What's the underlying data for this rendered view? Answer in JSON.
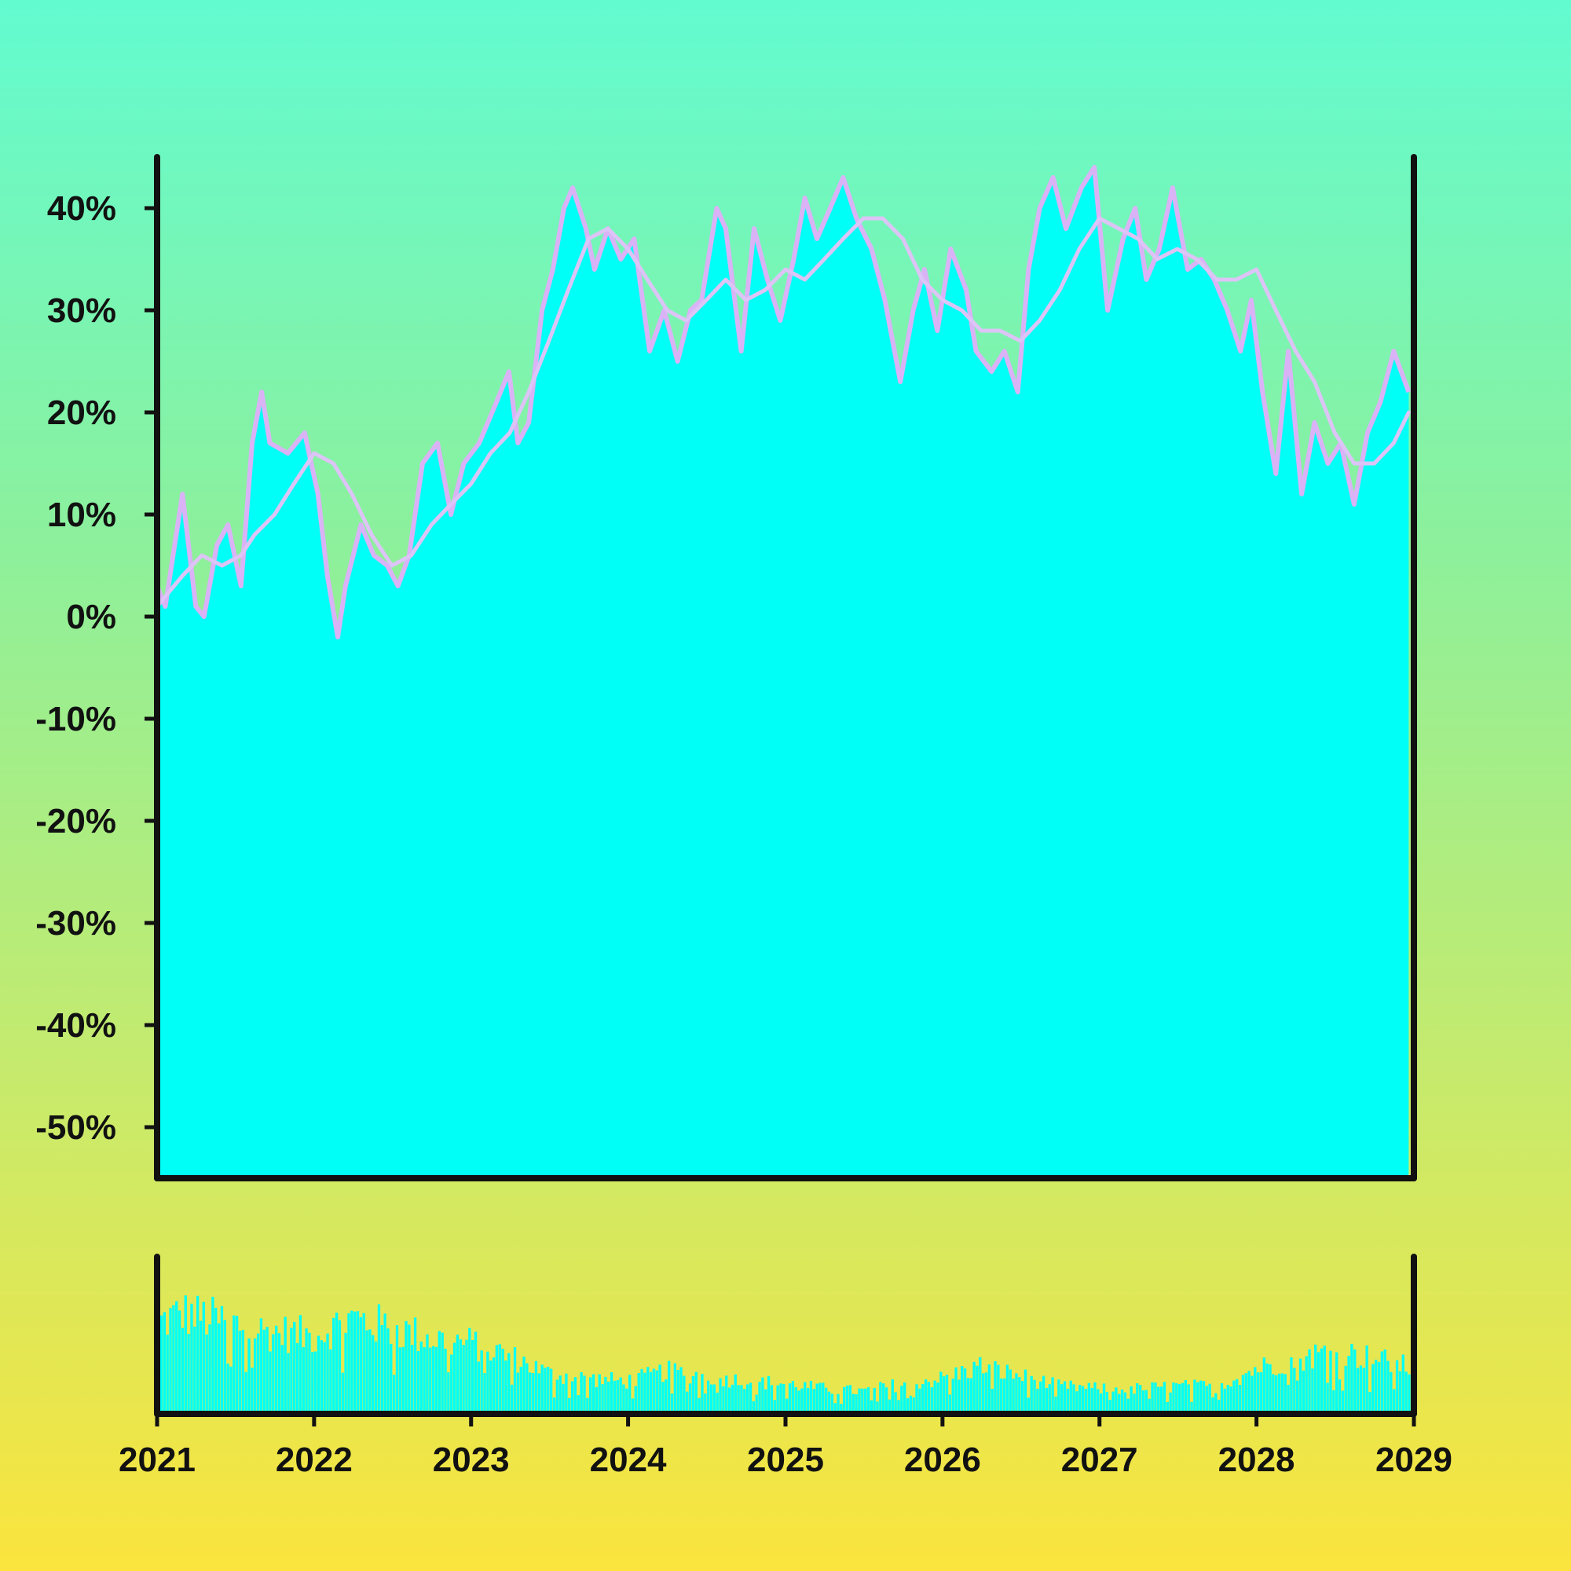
{
  "colors": {
    "area_fill": "#00fff6",
    "price_line": "#d9b3f6",
    "ma_line": "#dcc4f6",
    "axis": "#111111",
    "volume_fill": "#00fff6"
  },
  "chart_data": [
    {
      "type": "area",
      "title": "",
      "xlabel": "",
      "ylabel": "",
      "grid": false,
      "legend": "none",
      "ylim": [
        -55,
        45
      ],
      "xlim": [
        "2021-01-01",
        "2029-01-01"
      ],
      "y_ticks": [
        {
          "value": 40,
          "label": "40%"
        },
        {
          "value": 30,
          "label": "30%"
        },
        {
          "value": 20,
          "label": "20%"
        },
        {
          "value": 10,
          "label": "10%"
        },
        {
          "value": 0,
          "label": "0%"
        },
        {
          "value": -10,
          "label": "-10%"
        },
        {
          "value": -20,
          "label": "-20%"
        },
        {
          "value": -30,
          "label": "-30%"
        },
        {
          "value": -40,
          "label": "-40%"
        },
        {
          "value": -50,
          "label": "-50%"
        }
      ],
      "x_ticks": [
        {
          "value": "2021-01-01",
          "label": "2021"
        },
        {
          "value": "2022-01-01",
          "label": "2022"
        },
        {
          "value": "2023-01-01",
          "label": "2023"
        },
        {
          "value": "2024-01-01",
          "label": "2024"
        },
        {
          "value": "2025-01-01",
          "label": "2025"
        },
        {
          "value": "2026-01-01",
          "label": "2026"
        },
        {
          "value": "2027-01-01",
          "label": "2027"
        },
        {
          "value": "2028-01-01",
          "label": "2028"
        },
        {
          "value": "2029-01-01",
          "label": "2029"
        }
      ],
      "series": [
        {
          "x": [
            "2021-01-01",
            "2021-01-20",
            "2021-03-01",
            "2021-04-01",
            "2021-04-20",
            "2021-05-20",
            "2021-06-15",
            "2021-07-15",
            "2021-08-10",
            "2021-09-01",
            "2021-09-20",
            "2021-11-01",
            "2021-12-10",
            "2022-01-10",
            "2022-02-01",
            "2022-02-25",
            "2022-03-15",
            "2022-04-20",
            "2022-05-20",
            "2022-06-20",
            "2022-07-15",
            "2022-08-10",
            "2022-09-10",
            "2022-10-15",
            "2022-11-15",
            "2022-12-15",
            "2023-01-20",
            "2023-03-01",
            "2023-03-30",
            "2023-04-20",
            "2023-05-15",
            "2023-06-15",
            "2023-07-10",
            "2023-08-05",
            "2023-08-25",
            "2023-09-25",
            "2023-10-15",
            "2023-11-15",
            "2023-12-15",
            "2024-01-15",
            "2024-02-20",
            "2024-03-25",
            "2024-04-25",
            "2024-05-25",
            "2024-06-20",
            "2024-07-25",
            "2024-08-15",
            "2024-09-20",
            "2024-10-20",
            "2024-11-20",
            "2024-12-20",
            "2025-01-20",
            "2025-02-15",
            "2025-03-15",
            "2025-04-15",
            "2025-05-15",
            "2025-06-15",
            "2025-07-20",
            "2025-08-20",
            "2025-09-25",
            "2025-10-25",
            "2025-11-20",
            "2025-12-20",
            "2026-01-20",
            "2026-02-25",
            "2026-03-20",
            "2026-04-25",
            "2026-05-25",
            "2026-06-25",
            "2026-07-20",
            "2026-08-15",
            "2026-09-15",
            "2026-10-15",
            "2026-11-20",
            "2026-12-20",
            "2027-01-20",
            "2027-02-25",
            "2027-03-25",
            "2027-04-20",
            "2027-05-20",
            "2027-06-20",
            "2027-07-25",
            "2027-08-25",
            "2027-09-25",
            "2027-10-25",
            "2027-11-25",
            "2027-12-20",
            "2028-01-15",
            "2028-02-15",
            "2028-03-15",
            "2028-04-15",
            "2028-05-15",
            "2028-06-15",
            "2028-07-15",
            "2028-08-15",
            "2028-09-15",
            "2028-10-15",
            "2028-11-15",
            "2028-12-20"
          ],
          "y": [
            3,
            1,
            12,
            1,
            0,
            7,
            9,
            3,
            17,
            22,
            17,
            16,
            18,
            12,
            4,
            -2,
            3,
            9,
            6,
            5,
            3,
            6,
            15,
            17,
            10,
            15,
            17,
            21,
            24,
            17,
            19,
            30,
            34,
            40,
            42,
            38,
            34,
            38,
            35,
            37,
            26,
            30,
            25,
            30,
            31,
            40,
            38,
            26,
            38,
            33,
            29,
            35,
            41,
            37,
            40,
            43,
            39,
            36,
            31,
            23,
            30,
            34,
            28,
            36,
            32,
            26,
            24,
            26,
            22,
            34,
            40,
            43,
            38,
            42,
            44,
            30,
            37,
            40,
            33,
            36,
            42,
            34,
            35,
            33,
            30,
            26,
            31,
            22,
            14,
            26,
            12,
            19,
            15,
            17,
            11,
            18,
            21,
            26,
            22
          ]
        },
        {
          "x": [
            "2021-01-01",
            "2021-03-01",
            "2021-04-15",
            "2021-06-01",
            "2021-07-15",
            "2021-08-15",
            "2021-10-01",
            "2021-11-15",
            "2022-01-01",
            "2022-02-15",
            "2022-03-30",
            "2022-05-15",
            "2022-07-01",
            "2022-08-15",
            "2022-10-01",
            "2022-11-15",
            "2023-01-01",
            "2023-02-15",
            "2023-04-01",
            "2023-05-15",
            "2023-07-01",
            "2023-08-15",
            "2023-10-01",
            "2023-11-15",
            "2024-01-01",
            "2024-02-15",
            "2024-04-01",
            "2024-05-15",
            "2024-07-01",
            "2024-08-15",
            "2024-10-01",
            "2024-11-15",
            "2025-01-01",
            "2025-02-15",
            "2025-04-01",
            "2025-05-15",
            "2025-07-01",
            "2025-08-15",
            "2025-10-01",
            "2025-11-15",
            "2026-01-01",
            "2026-02-15",
            "2026-04-01",
            "2026-05-15",
            "2026-07-01",
            "2026-08-15",
            "2026-10-01",
            "2026-11-15",
            "2027-01-01",
            "2027-02-15",
            "2027-04-01",
            "2027-05-15",
            "2027-07-01",
            "2027-08-15",
            "2027-10-01",
            "2027-11-15",
            "2028-01-01",
            "2028-02-15",
            "2028-04-01",
            "2028-05-15",
            "2028-07-01",
            "2028-08-15",
            "2028-10-01",
            "2028-11-15",
            "2028-12-20"
          ],
          "y": [
            1,
            4,
            6,
            5,
            6,
            8,
            10,
            13,
            16,
            15,
            12,
            8,
            5,
            6,
            9,
            11,
            13,
            16,
            18,
            22,
            27,
            32,
            37,
            38,
            36,
            33,
            30,
            29,
            31,
            33,
            31,
            32,
            34,
            33,
            35,
            37,
            39,
            39,
            37,
            33,
            31,
            30,
            28,
            28,
            27,
            29,
            32,
            36,
            39,
            38,
            37,
            35,
            36,
            35,
            33,
            33,
            34,
            30,
            26,
            23,
            18,
            15,
            15,
            17,
            20
          ]
        }
      ]
    },
    {
      "type": "bar",
      "title": "",
      "xlabel": "",
      "ylabel": "",
      "grid": false,
      "legend": "none",
      "ylim": [
        0,
        100
      ],
      "xlim": [
        "2021-01-01",
        "2029-01-01"
      ],
      "x_ticks": [
        {
          "value": "2021-01-01",
          "label": "2021"
        },
        {
          "value": "2022-01-01",
          "label": "2022"
        },
        {
          "value": "2023-01-01",
          "label": "2023"
        },
        {
          "value": "2024-01-01",
          "label": "2024"
        },
        {
          "value": "2025-01-01",
          "label": "2025"
        },
        {
          "value": "2026-01-01",
          "label": "2026"
        },
        {
          "value": "2027-01-01",
          "label": "2027"
        },
        {
          "value": "2028-01-01",
          "label": "2028"
        },
        {
          "value": "2029-01-01",
          "label": "2029"
        }
      ],
      "envelope": {
        "x": [
          "2021-01-01",
          "2021-03-01",
          "2021-06-01",
          "2021-09-01",
          "2022-01-01",
          "2022-04-01",
          "2022-07-01",
          "2022-10-01",
          "2023-01-01",
          "2023-04-01",
          "2023-07-01",
          "2023-10-01",
          "2024-01-01",
          "2024-04-01",
          "2024-07-01",
          "2024-10-01",
          "2025-01-01",
          "2025-04-01",
          "2025-07-01",
          "2025-10-01",
          "2026-01-01",
          "2026-04-01",
          "2026-07-01",
          "2026-10-01",
          "2027-01-01",
          "2027-04-01",
          "2027-07-01",
          "2027-10-01",
          "2028-01-01",
          "2028-04-01",
          "2028-07-01",
          "2028-10-01",
          "2029-01-01"
        ],
        "y": [
          72,
          80,
          74,
          66,
          62,
          76,
          68,
          60,
          56,
          46,
          32,
          28,
          26,
          34,
          30,
          26,
          24,
          20,
          18,
          24,
          28,
          38,
          30,
          22,
          20,
          20,
          22,
          22,
          36,
          44,
          50,
          44,
          36
        ]
      }
    }
  ]
}
